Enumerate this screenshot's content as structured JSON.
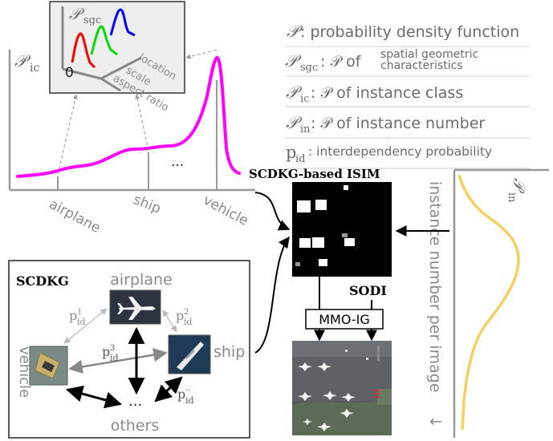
{
  "legend": {
    "items": [
      {
        "symbol": "𝒫",
        "sub": "",
        "text": ": probability density function",
        "text2": ""
      },
      {
        "symbol": "𝒫",
        "sub": "sgc",
        "text": ": 𝒫 of ",
        "small1": "spatial geometric",
        "small2": "characteristics"
      },
      {
        "symbol": "𝒫",
        "sub": "ic",
        "text": ": 𝒫 of instance class",
        "text2": ""
      },
      {
        "symbol": "𝒫",
        "sub": "in",
        "text": ": 𝒫 of instance number",
        "text2": ""
      },
      {
        "symbol": "p",
        "sub": "id",
        "text": ": interdependency probability",
        "text2": ""
      }
    ]
  },
  "pic_chart": {
    "ylabel_symbol": "𝒫",
    "ylabel_sub": "ic",
    "categories": [
      "airplane",
      "ship",
      "vehicle"
    ],
    "ellipsis": "···",
    "line_color": "#ff00ff"
  },
  "sgc_box": {
    "label_symbol": "𝒫",
    "label_sub": "sgc",
    "origin": "0",
    "axes": [
      "location",
      "scale",
      "aspect ratio"
    ],
    "curve_colors": [
      "#ff0000",
      "#00dd00",
      "#0000ff"
    ]
  },
  "isim": {
    "title": "SCDKG-based ISIM"
  },
  "sodi": {
    "label": "SODI",
    "generator": "MMO-IG"
  },
  "pin_chart": {
    "label_symbol": "𝒫",
    "label_sub": "in",
    "axis_label": "instance number per image",
    "arrow": "↓",
    "line_color": "#f5d060"
  },
  "scdkg": {
    "title": "SCDKG",
    "nodes": [
      "airplane",
      "ship",
      "vehicle",
      "others"
    ],
    "ellipsis": "···",
    "edges": [
      {
        "base": "p",
        "sup": "1",
        "sub": "id"
      },
      {
        "base": "p",
        "sup": "2",
        "sub": "id"
      },
      {
        "base": "p",
        "sup": "3",
        "sub": "id"
      },
      {
        "base": "p",
        "sup": "··",
        "sub": "id"
      }
    ]
  }
}
